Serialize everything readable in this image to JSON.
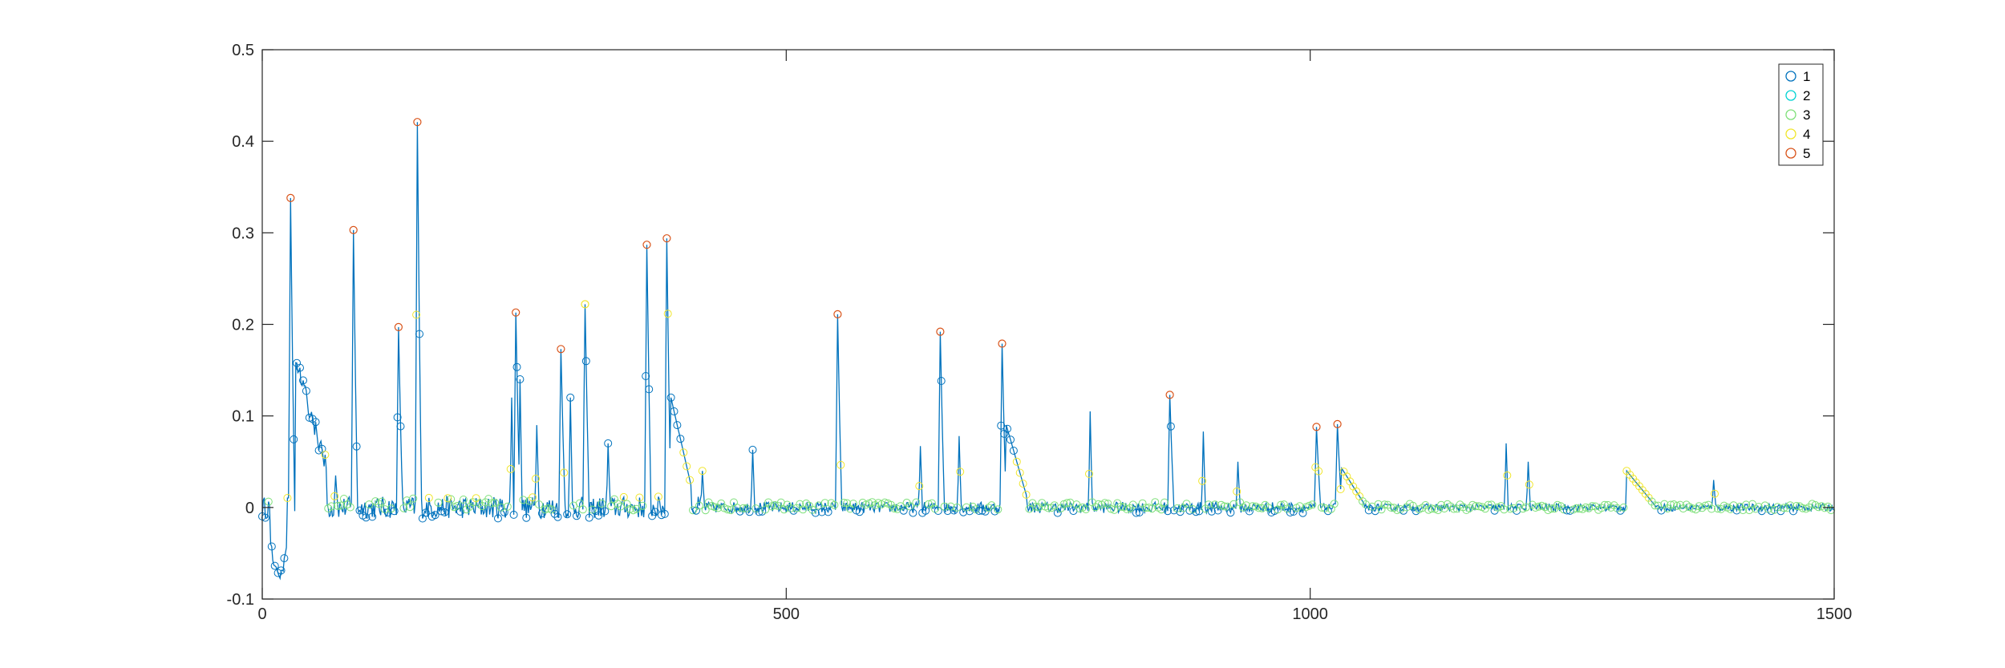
{
  "chart_data": {
    "type": "line",
    "title": "",
    "xlabel": "",
    "ylabel": "",
    "xlim": [
      0,
      1500
    ],
    "ylim": [
      -0.1,
      0.5
    ],
    "xticks": [
      0,
      500,
      1000,
      1500
    ],
    "xtick_labels": [
      "0",
      "500",
      "1000",
      "1500"
    ],
    "yticks": [
      -0.1,
      0,
      0.1,
      0.2,
      0.3,
      0.4,
      0.5
    ],
    "ytick_labels": [
      "-0.1",
      "0",
      "0.1",
      "0.2",
      "0.3",
      "0.4",
      "0.5"
    ],
    "grid": false,
    "legend_position": "top-right",
    "line_color": "#0072BD",
    "marker_style": "open-circle",
    "cluster_legend": [
      {
        "label": "1",
        "color": "#0072BD"
      },
      {
        "label": "2",
        "color": "#00D3D3"
      },
      {
        "label": "3",
        "color": "#7FE07A"
      },
      {
        "label": "4",
        "color": "#F0E62C"
      },
      {
        "label": "5",
        "color": "#D95319"
      }
    ],
    "peaks": [
      {
        "x": 27,
        "y": 0.338,
        "cluster": "5"
      },
      {
        "x": 87,
        "y": 0.303,
        "cluster": "5"
      },
      {
        "x": 130,
        "y": 0.197,
        "cluster": "5"
      },
      {
        "x": 148,
        "y": 0.421,
        "cluster": "5"
      },
      {
        "x": 242,
        "y": 0.213,
        "cluster": "5"
      },
      {
        "x": 285,
        "y": 0.173,
        "cluster": "5"
      },
      {
        "x": 308,
        "y": 0.222,
        "cluster": "4"
      },
      {
        "x": 367,
        "y": 0.287,
        "cluster": "5"
      },
      {
        "x": 386,
        "y": 0.294,
        "cluster": "5"
      },
      {
        "x": 549,
        "y": 0.211,
        "cluster": "5"
      },
      {
        "x": 647,
        "y": 0.192,
        "cluster": "5"
      },
      {
        "x": 706,
        "y": 0.179,
        "cluster": "5"
      },
      {
        "x": 866,
        "y": 0.123,
        "cluster": "5"
      },
      {
        "x": 1006,
        "y": 0.088,
        "cluster": "5"
      },
      {
        "x": 1026,
        "y": 0.091,
        "cluster": "5"
      }
    ]
  }
}
